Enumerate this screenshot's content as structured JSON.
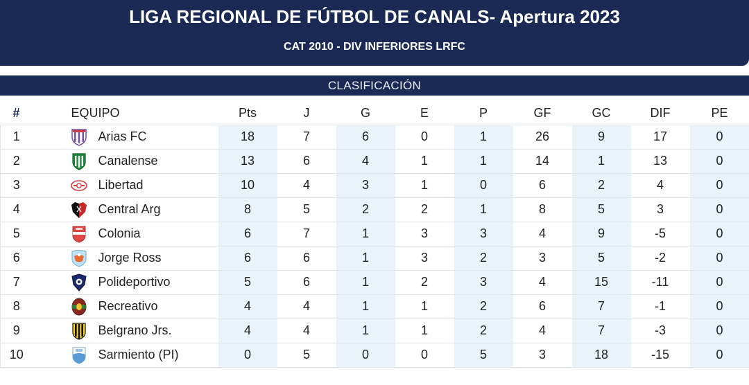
{
  "header": {
    "title": "LIGA REGIONAL DE FÚTBOL DE CANALS- Apertura 2023",
    "subtitle": "CAT 2010 - DIV INFERIORES LRFC"
  },
  "section": {
    "label": "CLASIFICACIÓN"
  },
  "table": {
    "columns": [
      "#",
      "EQUIPO",
      "Pts",
      "J",
      "G",
      "E",
      "P",
      "GF",
      "GC",
      "DIF",
      "PE"
    ],
    "rows": [
      {
        "pos": "1",
        "team": "Arias FC",
        "crest": "arias-fc-crest-icon",
        "pts": "18",
        "j": "7",
        "g": "6",
        "e": "0",
        "p": "1",
        "gf": "26",
        "gc": "9",
        "dif": "17",
        "pe": "0"
      },
      {
        "pos": "2",
        "team": "Canalense",
        "crest": "canalense-crest-icon",
        "pts": "13",
        "j": "6",
        "g": "4",
        "e": "1",
        "p": "1",
        "gf": "14",
        "gc": "1",
        "dif": "13",
        "pe": "0"
      },
      {
        "pos": "3",
        "team": "Libertad",
        "crest": "libertad-crest-icon",
        "pts": "10",
        "j": "4",
        "g": "3",
        "e": "1",
        "p": "0",
        "gf": "6",
        "gc": "2",
        "dif": "4",
        "pe": "0"
      },
      {
        "pos": "4",
        "team": "Central Arg",
        "crest": "central-arg-crest-icon",
        "pts": "8",
        "j": "5",
        "g": "2",
        "e": "2",
        "p": "1",
        "gf": "8",
        "gc": "5",
        "dif": "3",
        "pe": "0"
      },
      {
        "pos": "5",
        "team": "Colonia",
        "crest": "colonia-crest-icon",
        "pts": "6",
        "j": "7",
        "g": "1",
        "e": "3",
        "p": "3",
        "gf": "4",
        "gc": "9",
        "dif": "-5",
        "pe": "0"
      },
      {
        "pos": "6",
        "team": "Jorge Ross",
        "crest": "jorge-ross-crest-icon",
        "pts": "6",
        "j": "6",
        "g": "1",
        "e": "3",
        "p": "2",
        "gf": "3",
        "gc": "5",
        "dif": "-2",
        "pe": "0"
      },
      {
        "pos": "7",
        "team": "Polideportivo",
        "crest": "polideportivo-crest-icon",
        "pts": "5",
        "j": "6",
        "g": "1",
        "e": "2",
        "p": "3",
        "gf": "4",
        "gc": "15",
        "dif": "-11",
        "pe": "0"
      },
      {
        "pos": "8",
        "team": "Recreativo",
        "crest": "recreativo-crest-icon",
        "pts": "4",
        "j": "4",
        "g": "1",
        "e": "1",
        "p": "2",
        "gf": "6",
        "gc": "7",
        "dif": "-1",
        "pe": "0"
      },
      {
        "pos": "9",
        "team": "Belgrano Jrs.",
        "crest": "belgrano-jrs-crest-icon",
        "pts": "4",
        "j": "4",
        "g": "1",
        "e": "1",
        "p": "2",
        "gf": "4",
        "gc": "7",
        "dif": "-3",
        "pe": "0"
      },
      {
        "pos": "10",
        "team": "Sarmiento (PI)",
        "crest": "sarmiento-crest-icon",
        "pts": "0",
        "j": "5",
        "g": "0",
        "e": "0",
        "p": "5",
        "gf": "3",
        "gc": "18",
        "dif": "-15",
        "pe": "0"
      }
    ]
  },
  "colors": {
    "header_bg": "#1b2a55",
    "shaded_cell": "#eaf3fa",
    "row_border": "#dfe4ea"
  }
}
